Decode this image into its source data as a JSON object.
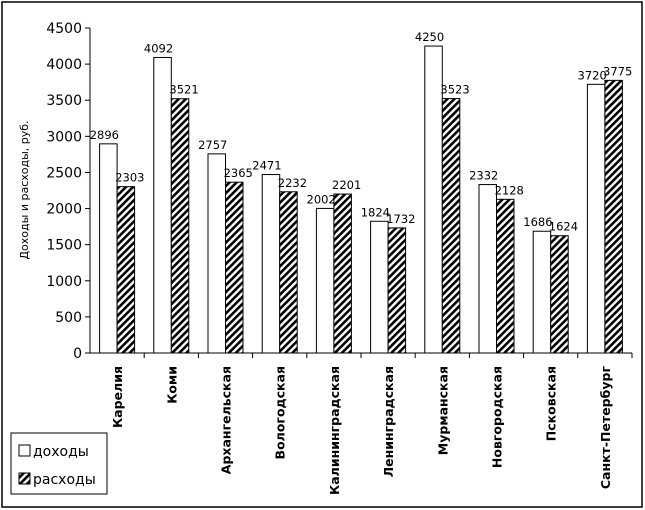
{
  "chart_data": {
    "type": "bar",
    "ylabel": "Доходы и расходы, руб.",
    "ylim": [
      0,
      4500
    ],
    "yticks": [
      0,
      500,
      1000,
      1500,
      2000,
      2500,
      3000,
      3500,
      4000,
      4500
    ],
    "grid": false,
    "legend_position": "bottom-left",
    "categories": [
      "Карелия",
      "Коми",
      "Архангельская",
      "Вологодская",
      "Калининградская",
      "Ленинградская",
      "Мурманская",
      "Новгородская",
      "Псковская",
      "Санкт-Петербург"
    ],
    "series": [
      {
        "name": "доходы",
        "fill": "white",
        "values": [
          2896,
          4092,
          2757,
          2471,
          2002,
          1824,
          4250,
          2332,
          1686,
          3720
        ]
      },
      {
        "name": "расходы",
        "fill": "hatched",
        "values": [
          2303,
          3521,
          2365,
          2232,
          2201,
          1732,
          3523,
          2128,
          1624,
          3775
        ]
      }
    ]
  }
}
